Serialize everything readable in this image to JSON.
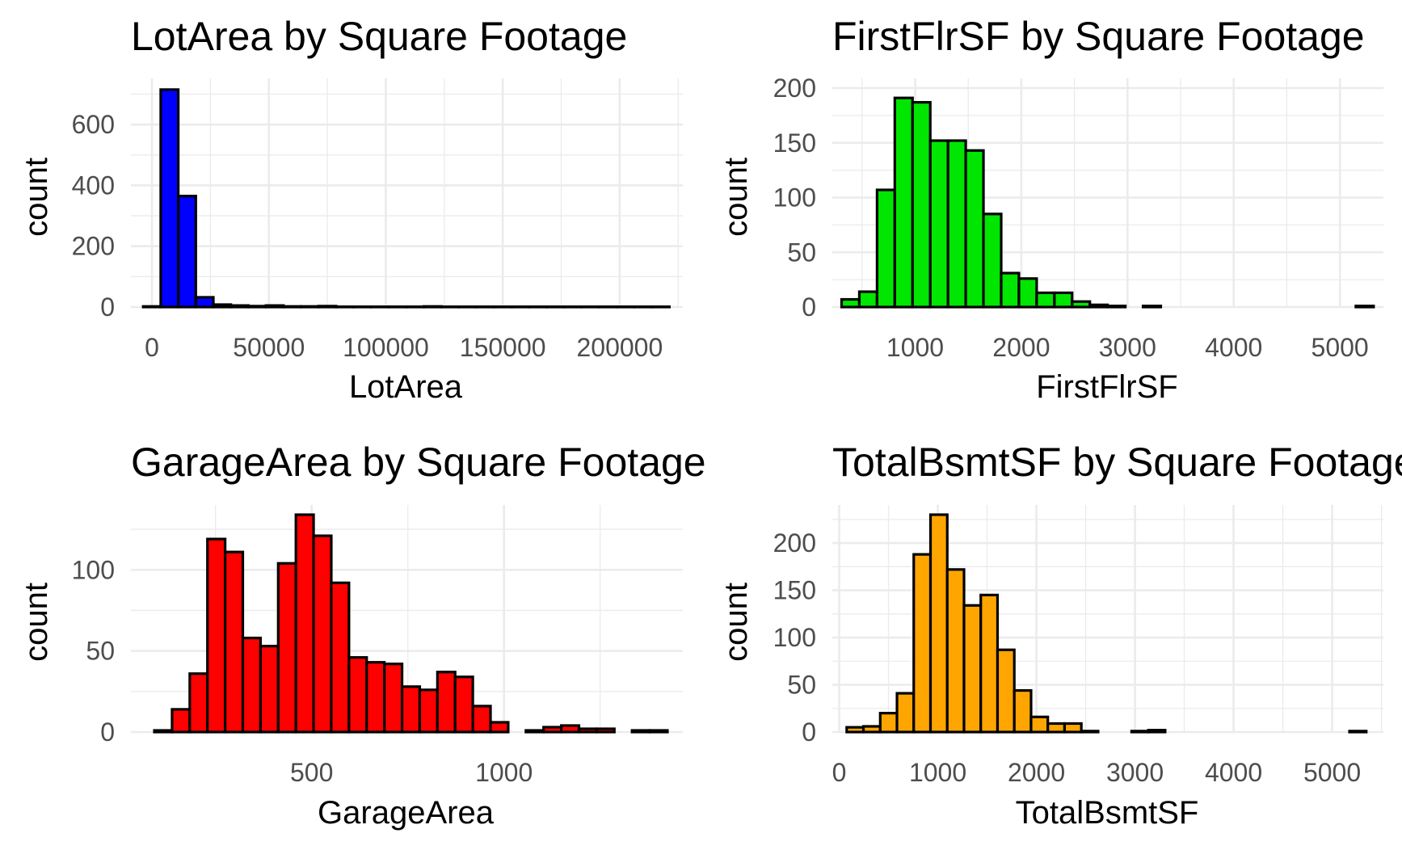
{
  "chart_data": [
    {
      "type": "bar",
      "histogram": true,
      "title": "LotArea by Square Footage",
      "xlabel": "LotArea",
      "ylabel": "count",
      "fill": "#0000ff",
      "bin_width": 7500,
      "bin_centers": [
        0,
        7500,
        15000,
        22500,
        30000,
        37500,
        45000,
        52500,
        60000,
        67500,
        75000,
        82500,
        90000,
        97500,
        105000,
        112500,
        120000,
        127500,
        135000,
        142500,
        150000,
        157500,
        165000,
        172500,
        180000,
        187500,
        195000,
        202500,
        210000,
        217500
      ],
      "values": [
        2,
        715,
        365,
        32,
        8,
        5,
        3,
        5,
        2,
        2,
        3,
        1,
        1,
        1,
        1,
        1,
        2,
        1,
        1,
        1,
        1,
        1,
        1,
        1,
        1,
        1,
        1,
        1,
        1,
        1
      ],
      "xlim": [
        -9000,
        227000
      ],
      "ylim": [
        0,
        720
      ],
      "x_ticks": [
        0,
        50000,
        100000,
        150000,
        200000
      ],
      "x_tick_labels": [
        "0",
        "50000",
        "100000",
        "150000",
        "200000"
      ],
      "y_ticks": [
        0,
        200,
        400,
        600
      ],
      "y_tick_labels": [
        "0",
        "200",
        "400",
        "600"
      ],
      "grid": true
    },
    {
      "type": "bar",
      "histogram": true,
      "title": "FirstFlrSF by Square Footage",
      "xlabel": "FirstFlrSF",
      "ylabel": "count",
      "fill": "#00e600",
      "bin_width": 167,
      "bin_centers": [
        391,
        558,
        725,
        892,
        1059,
        1226,
        1393,
        1560,
        1727,
        1894,
        2061,
        2228,
        2395,
        2562,
        2729,
        2896,
        3063,
        3230,
        3397,
        3564,
        3731,
        3898,
        4065,
        4232,
        4399,
        4566,
        4733,
        4900,
        5067,
        5234
      ],
      "values": [
        7,
        14,
        107,
        191,
        187,
        152,
        152,
        143,
        85,
        31,
        26,
        13,
        13,
        5,
        2,
        1,
        0,
        1,
        0,
        0,
        0,
        0,
        0,
        0,
        0,
        0,
        0,
        0,
        0,
        1
      ],
      "xlim": [
        220,
        5410
      ],
      "ylim": [
        0,
        200
      ],
      "x_ticks": [
        1000,
        2000,
        3000,
        4000,
        5000
      ],
      "x_tick_labels": [
        "1000",
        "2000",
        "3000",
        "4000",
        "5000"
      ],
      "y_ticks": [
        0,
        50,
        100,
        150,
        200
      ],
      "y_tick_labels": [
        "0",
        "50",
        "100",
        "150",
        "200"
      ],
      "grid": true
    },
    {
      "type": "bar",
      "histogram": true,
      "title": "GarageArea by Square Footage",
      "xlabel": "GarageArea",
      "ylabel": "count",
      "fill": "#ff0000",
      "bin_width": 46,
      "bin_centers": [
        114,
        160,
        206,
        252,
        298,
        344,
        390,
        436,
        482,
        528,
        574,
        620,
        666,
        712,
        758,
        804,
        850,
        896,
        942,
        988,
        1034,
        1080,
        1126,
        1172,
        1218,
        1264,
        1310,
        1356,
        1402
      ],
      "values": [
        1,
        14,
        36,
        119,
        111,
        58,
        53,
        104,
        134,
        121,
        92,
        46,
        43,
        42,
        28,
        26,
        37,
        34,
        16,
        6,
        0,
        1,
        3,
        4,
        2,
        2,
        0,
        1,
        1
      ],
      "xlim": [
        30,
        1465
      ],
      "ylim": [
        0,
        134
      ],
      "x_ticks": [
        500,
        1000
      ],
      "x_tick_labels": [
        "500",
        "1000"
      ],
      "y_ticks": [
        0,
        50,
        100
      ],
      "y_tick_labels": [
        "0",
        "50",
        "100"
      ],
      "grid": true
    },
    {
      "type": "bar",
      "histogram": true,
      "title": "TotalBsmtSF by Square Footage",
      "xlabel": "TotalBsmtSF",
      "ylabel": "count",
      "fill": "#ffa500",
      "bin_width": 170,
      "bin_centers": [
        161,
        331,
        501,
        671,
        841,
        1011,
        1181,
        1351,
        1521,
        1691,
        1861,
        2031,
        2201,
        2371,
        2541,
        2711,
        2881,
        3051,
        3221,
        3391,
        3561,
        3731,
        3901,
        4071,
        4241,
        4411,
        4581,
        4751,
        4921,
        5091,
        5261
      ],
      "values": [
        5,
        6,
        20,
        41,
        188,
        230,
        172,
        134,
        145,
        87,
        44,
        16,
        9,
        9,
        1,
        0,
        0,
        1,
        2,
        0,
        0,
        0,
        0,
        0,
        0,
        0,
        0,
        0,
        0,
        0,
        1
      ],
      "xlim": [
        -70,
        5520
      ],
      "ylim": [
        0,
        230
      ],
      "x_ticks": [
        0,
        1000,
        2000,
        3000,
        4000,
        5000
      ],
      "x_tick_labels": [
        "0",
        "1000",
        "2000",
        "3000",
        "4000",
        "5000"
      ],
      "y_ticks": [
        0,
        50,
        100,
        150,
        200
      ],
      "y_tick_labels": [
        "0",
        "50",
        "100",
        "150",
        "200"
      ],
      "grid": true
    }
  ]
}
